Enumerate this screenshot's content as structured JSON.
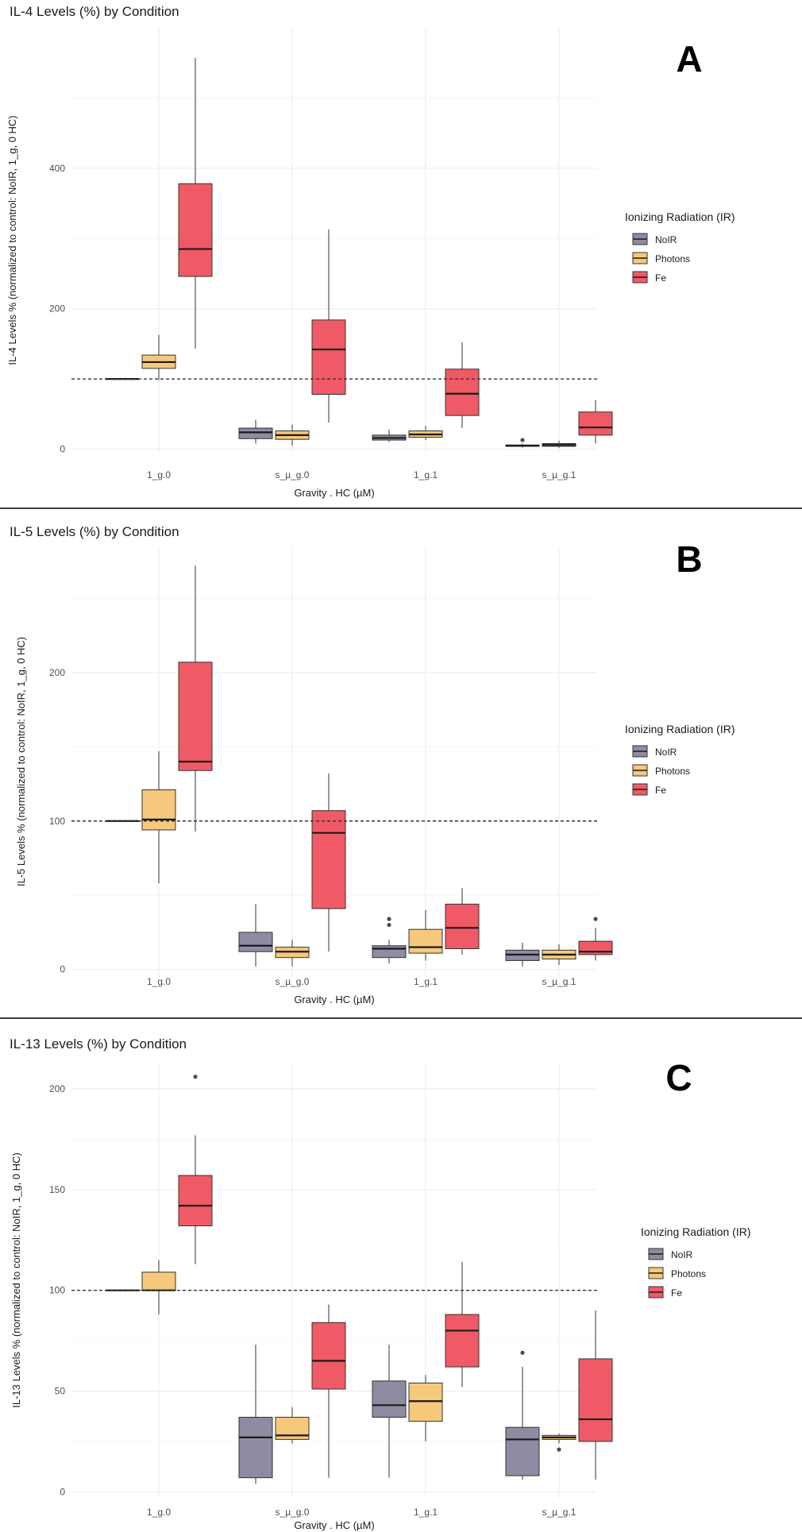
{
  "figure": {
    "legend_title": "Ionizing Radiation (IR)",
    "conditions": [
      {
        "name": "NoIR",
        "color": "#8f8ba3"
      },
      {
        "name": "Photons",
        "color": "#f6c87c"
      },
      {
        "name": "Fe",
        "color": "#f05a66"
      }
    ]
  },
  "chart_data": [
    {
      "type": "box",
      "panel_label": "A",
      "title": "IL-4 Levels (%) by Condition",
      "xlabel": "Gravity . HC (µM)",
      "ylabel": "IL-4 Levels % (normalized to control: NoIR, 1_g, 0 HC)",
      "categories": [
        "1_g.0",
        "s_µ_g.0",
        "1_g.1",
        "s_µ_g.1"
      ],
      "ylim": [
        -5,
        600
      ],
      "yticks": [
        0,
        200,
        400
      ],
      "reference_line": 100,
      "series": [
        {
          "name": "NoIR",
          "boxes": [
            {
              "min": 100,
              "q1": 100,
              "median": 100,
              "q3": 100,
              "max": 100,
              "outliers": []
            },
            {
              "min": 8,
              "q1": 15,
              "median": 24,
              "q3": 30,
              "max": 42,
              "outliers": []
            },
            {
              "min": 10,
              "q1": 13,
              "median": 16,
              "q3": 20,
              "max": 28,
              "outliers": []
            },
            {
              "min": 2,
              "q1": 4,
              "median": 5,
              "q3": 6,
              "max": 8,
              "outliers": [
                13
              ]
            }
          ]
        },
        {
          "name": "Photons",
          "boxes": [
            {
              "min": 98,
              "q1": 115,
              "median": 124,
              "q3": 134,
              "max": 163,
              "outliers": []
            },
            {
              "min": 5,
              "q1": 14,
              "median": 20,
              "q3": 26,
              "max": 35,
              "outliers": []
            },
            {
              "min": 13,
              "q1": 17,
              "median": 21,
              "q3": 26,
              "max": 33,
              "outliers": []
            },
            {
              "min": 2,
              "q1": 4,
              "median": 6,
              "q3": 8,
              "max": 12,
              "outliers": []
            }
          ]
        },
        {
          "name": "Fe",
          "boxes": [
            {
              "min": 143,
              "q1": 246,
              "median": 285,
              "q3": 378,
              "max": 557,
              "outliers": []
            },
            {
              "min": 38,
              "q1": 78,
              "median": 142,
              "q3": 184,
              "max": 313,
              "outliers": []
            },
            {
              "min": 30,
              "q1": 48,
              "median": 79,
              "q3": 114,
              "max": 152,
              "outliers": []
            },
            {
              "min": 8,
              "q1": 20,
              "median": 31,
              "q3": 53,
              "max": 70,
              "outliers": []
            }
          ]
        }
      ]
    },
    {
      "type": "box",
      "panel_label": "B",
      "title": "IL-5 Levels (%) by Condition",
      "xlabel": "Gravity . HC (µM)",
      "ylabel": "IL-5 Levels % (normalized to control: NoIR, 1_g, 0 HC)",
      "categories": [
        "1_g.0",
        "s_µ_g.0",
        "1_g.1",
        "s_µ_g.1"
      ],
      "ylim": [
        -5,
        285
      ],
      "yticks": [
        0,
        100,
        200
      ],
      "reference_line": 100,
      "series": [
        {
          "name": "NoIR",
          "boxes": [
            {
              "min": 100,
              "q1": 100,
              "median": 100,
              "q3": 100,
              "max": 100,
              "outliers": []
            },
            {
              "min": 2,
              "q1": 12,
              "median": 16,
              "q3": 25,
              "max": 44,
              "outliers": []
            },
            {
              "min": 4,
              "q1": 8,
              "median": 14,
              "q3": 16,
              "max": 20,
              "outliers": [
                30,
                34
              ]
            },
            {
              "min": 2,
              "q1": 6,
              "median": 10,
              "q3": 13,
              "max": 18,
              "outliers": []
            }
          ]
        },
        {
          "name": "Photons",
          "boxes": [
            {
              "min": 58,
              "q1": 94,
              "median": 101,
              "q3": 121,
              "max": 147,
              "outliers": []
            },
            {
              "min": 2,
              "q1": 8,
              "median": 12,
              "q3": 15,
              "max": 20,
              "outliers": []
            },
            {
              "min": 6,
              "q1": 11,
              "median": 15,
              "q3": 27,
              "max": 40,
              "outliers": []
            },
            {
              "min": 3,
              "q1": 7,
              "median": 10,
              "q3": 13,
              "max": 17,
              "outliers": []
            }
          ]
        },
        {
          "name": "Fe",
          "boxes": [
            {
              "min": 93,
              "q1": 134,
              "median": 140,
              "q3": 207,
              "max": 272,
              "outliers": []
            },
            {
              "min": 12,
              "q1": 41,
              "median": 92,
              "q3": 107,
              "max": 132,
              "outliers": []
            },
            {
              "min": 10,
              "q1": 14,
              "median": 28,
              "q3": 44,
              "max": 55,
              "outliers": []
            },
            {
              "min": 6,
              "q1": 10,
              "median": 12,
              "q3": 19,
              "max": 28,
              "outliers": [
                34
              ]
            }
          ]
        }
      ]
    },
    {
      "type": "box",
      "panel_label": "C",
      "title": "IL-13 Levels (%) by Condition",
      "xlabel": "Gravity . HC (µM)",
      "ylabel": "IL-13 Levels % (normalized to control: NoIR, 1_g, 0 HC)",
      "categories": [
        "1_g.0",
        "s_µ_g.0",
        "1_g.1",
        "s_µ_g.1"
      ],
      "ylim": [
        -3,
        213
      ],
      "yticks": [
        0,
        50,
        100,
        150,
        200
      ],
      "reference_line": 100,
      "series": [
        {
          "name": "NoIR",
          "boxes": [
            {
              "min": 100,
              "q1": 100,
              "median": 100,
              "q3": 100,
              "max": 100,
              "outliers": []
            },
            {
              "min": 4,
              "q1": 7,
              "median": 27,
              "q3": 37,
              "max": 73,
              "outliers": []
            },
            {
              "min": 7,
              "q1": 37,
              "median": 43,
              "q3": 55,
              "max": 73,
              "outliers": []
            },
            {
              "min": 6,
              "q1": 8,
              "median": 26,
              "q3": 32,
              "max": 62,
              "outliers": [
                69
              ]
            }
          ]
        },
        {
          "name": "Photons",
          "boxes": [
            {
              "min": 88,
              "q1": 100,
              "median": 100,
              "q3": 109,
              "max": 115,
              "outliers": []
            },
            {
              "min": 24,
              "q1": 26,
              "median": 28,
              "q3": 37,
              "max": 42,
              "outliers": []
            },
            {
              "min": 25,
              "q1": 35,
              "median": 45,
              "q3": 54,
              "max": 58,
              "outliers": []
            },
            {
              "min": 24,
              "q1": 26,
              "median": 27,
              "q3": 28,
              "max": 29,
              "outliers": [
                21
              ]
            }
          ]
        },
        {
          "name": "Fe",
          "boxes": [
            {
              "min": 113,
              "q1": 132,
              "median": 142,
              "q3": 157,
              "max": 177,
              "outliers": [
                206
              ]
            },
            {
              "min": 7,
              "q1": 51,
              "median": 65,
              "q3": 84,
              "max": 93,
              "outliers": []
            },
            {
              "min": 52,
              "q1": 62,
              "median": 80,
              "q3": 88,
              "max": 114,
              "outliers": []
            },
            {
              "min": 6,
              "q1": 25,
              "median": 36,
              "q3": 66,
              "max": 90,
              "outliers": []
            }
          ]
        }
      ]
    }
  ]
}
